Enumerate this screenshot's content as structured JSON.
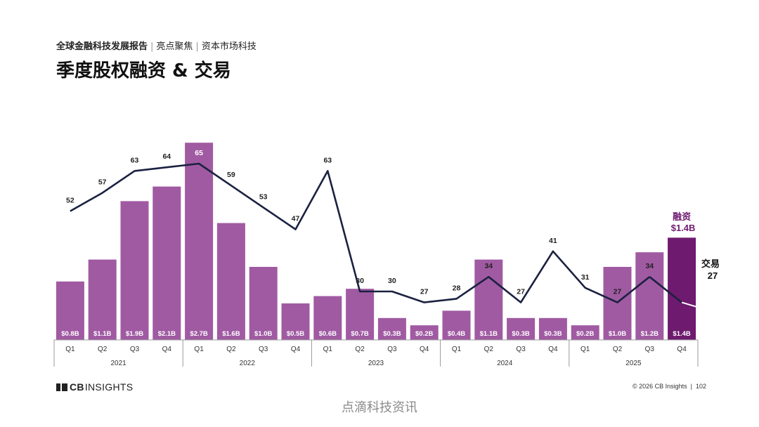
{
  "header": {
    "report": "全球金融科技发展报告",
    "section1": "亮点聚焦",
    "section2": "资本市场科技"
  },
  "title": "季度股权融资 & 交易",
  "chart_data": {
    "type": "bar",
    "title": "季度股权融资 & 交易",
    "quarters": [
      "Q1",
      "Q2",
      "Q3",
      "Q4",
      "Q1",
      "Q2",
      "Q3",
      "Q4",
      "Q1",
      "Q2",
      "Q3",
      "Q4",
      "Q1",
      "Q2",
      "Q3",
      "Q4",
      "Q1",
      "Q2",
      "Q3",
      "Q4"
    ],
    "years": [
      "2021",
      "2022",
      "2023",
      "2024",
      "2025"
    ],
    "series": [
      {
        "name": "融资",
        "kind": "bar",
        "values": [
          0.8,
          1.1,
          1.9,
          2.1,
          2.7,
          1.6,
          1.0,
          0.5,
          0.6,
          0.7,
          0.3,
          0.2,
          0.4,
          1.1,
          0.3,
          0.3,
          0.2,
          1.0,
          1.2,
          1.4
        ],
        "labels": [
          "$0.8B",
          "$1.1B",
          "$1.9B",
          "$2.1B",
          "$2.7B",
          "$1.6B",
          "$1.0B",
          "$0.5B",
          "$0.6B",
          "$0.7B",
          "$0.3B",
          "$0.2B",
          "$0.4B",
          "$1.1B",
          "$0.3B",
          "$0.3B",
          "$0.2B",
          "$1.0B",
          "$1.2B",
          "$1.4B"
        ]
      },
      {
        "name": "交易",
        "kind": "line",
        "values": [
          52,
          57,
          63,
          64,
          65,
          59,
          53,
          47,
          63,
          30,
          30,
          27,
          28,
          34,
          27,
          41,
          31,
          27,
          34,
          27
        ]
      }
    ],
    "annotations": {
      "funding_label": "融资",
      "funding_value": "$1.4B",
      "deals_label": "交易",
      "deals_value": "27"
    },
    "colors": {
      "bar": "#a05aa2",
      "bar_highlight": "#6e1a6e",
      "line": "#1b2140",
      "funding_text": "#6e1a6e"
    }
  },
  "footer": {
    "logo_bold": "CB",
    "logo_text": "INSIGHTS",
    "copyright": "© 2026 CB Insights",
    "page": "102"
  },
  "watermark": "点滴科技资讯"
}
